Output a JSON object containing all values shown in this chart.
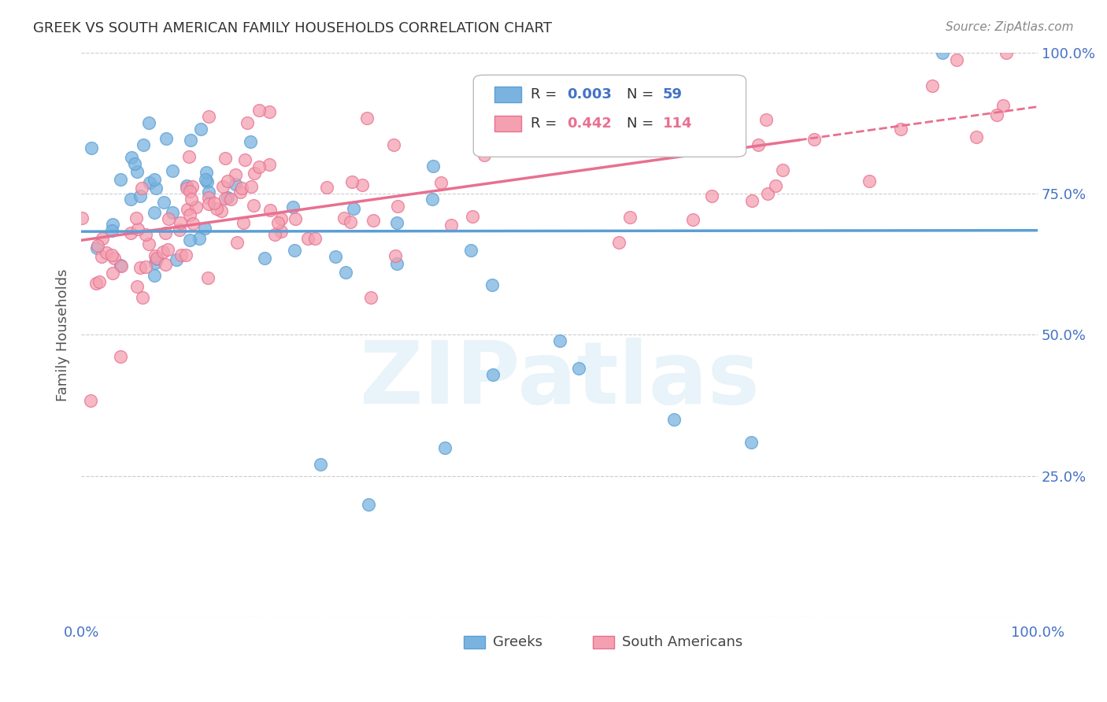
{
  "title": "GREEK VS SOUTH AMERICAN FAMILY HOUSEHOLDS CORRELATION CHART",
  "source": "Source: ZipAtlas.com",
  "ylabel": "Family Households",
  "xlim": [
    0.0,
    1.0
  ],
  "ylim": [
    0.0,
    1.0
  ],
  "yticks": [
    0.0,
    0.25,
    0.5,
    0.75,
    1.0
  ],
  "ytick_labels": [
    "",
    "25.0%",
    "50.0%",
    "75.0%",
    "100.0%"
  ],
  "greek_color": "#7ab3e0",
  "greek_edge_color": "#5a9fd4",
  "sa_color": "#f4a0b0",
  "sa_edge_color": "#e87090",
  "greek_R": 0.003,
  "greek_N": 59,
  "sa_R": 0.442,
  "sa_N": 114,
  "legend_label_greek": "Greeks",
  "legend_label_sa": "South Americans",
  "watermark": "ZIPatlas",
  "background_color": "#ffffff",
  "grid_color": "#cccccc",
  "title_color": "#333333",
  "axis_label_color": "#4472c4"
}
